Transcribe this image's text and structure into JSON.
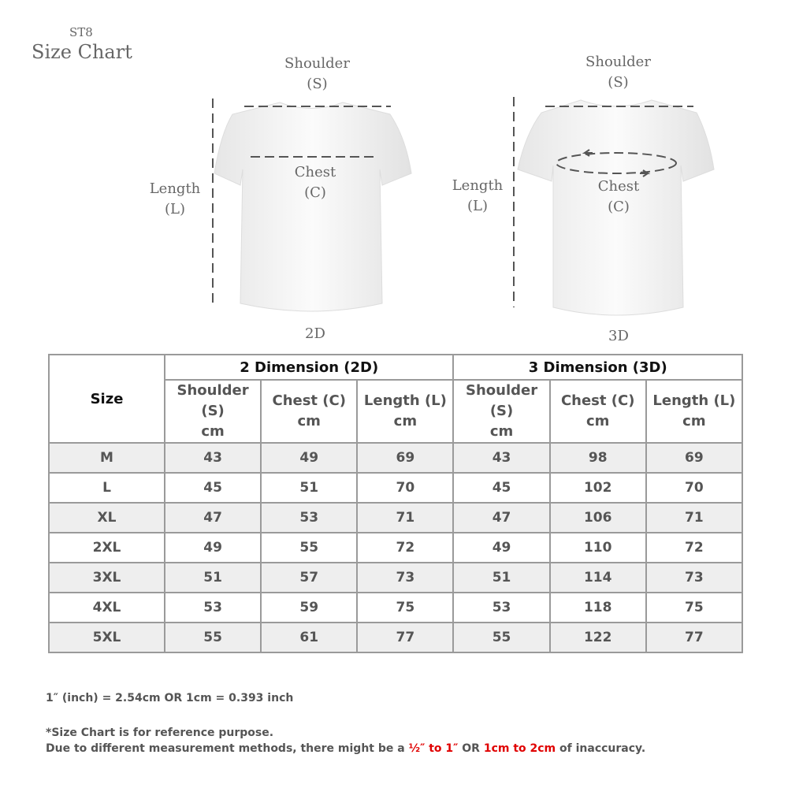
{
  "header": {
    "code": "ST8",
    "title": "Size Chart"
  },
  "diagrams": [
    {
      "view": "2D",
      "shoulder": "Shoulder",
      "shoulder_abbr": "(S)",
      "chest": "Chest",
      "chest_abbr": "(C)",
      "length": "Length",
      "length_abbr": "(L)"
    },
    {
      "view": "3D",
      "shoulder": "Shoulder",
      "shoulder_abbr": "(S)",
      "chest": "Chest",
      "chest_abbr": "(C)",
      "length": "Length",
      "length_abbr": "(L)"
    }
  ],
  "table": {
    "size_header": "Size",
    "groups": [
      "2 Dimension (2D)",
      "3 Dimension (3D)"
    ],
    "columns": [
      [
        "Shoulder (S)",
        "cm"
      ],
      [
        "Chest (C)",
        "cm"
      ],
      [
        "Length (L)",
        "cm"
      ],
      [
        "Shoulder (S)",
        "cm"
      ],
      [
        "Chest (C)",
        "cm"
      ],
      [
        "Length (L)",
        "cm"
      ]
    ],
    "rows": [
      [
        "M",
        "43",
        "49",
        "69",
        "43",
        "98",
        "69"
      ],
      [
        "L",
        "45",
        "51",
        "70",
        "45",
        "102",
        "70"
      ],
      [
        "XL",
        "47",
        "53",
        "71",
        "47",
        "106",
        "71"
      ],
      [
        "2XL",
        "49",
        "55",
        "72",
        "49",
        "110",
        "72"
      ],
      [
        "3XL",
        "51",
        "57",
        "73",
        "51",
        "114",
        "73"
      ],
      [
        "4XL",
        "53",
        "59",
        "75",
        "53",
        "118",
        "75"
      ],
      [
        "5XL",
        "55",
        "61",
        "77",
        "55",
        "122",
        "77"
      ]
    ]
  },
  "notes": {
    "conversion": "1″ (inch) = 2.54cm OR 1cm = 0.393 inch",
    "reference": "*Size Chart is for reference purpose.",
    "disclaimer_a": "Due to different measurement methods, there might be a ",
    "disclaimer_red1": "½″ to 1″",
    "disclaimer_b": " OR ",
    "disclaimer_red2": "1cm to 2cm",
    "disclaimer_c": " of inaccuracy."
  },
  "colors": {
    "accent_red": "#e00000",
    "row_alt": "#eeeeee",
    "border": "#9a9a9a"
  }
}
